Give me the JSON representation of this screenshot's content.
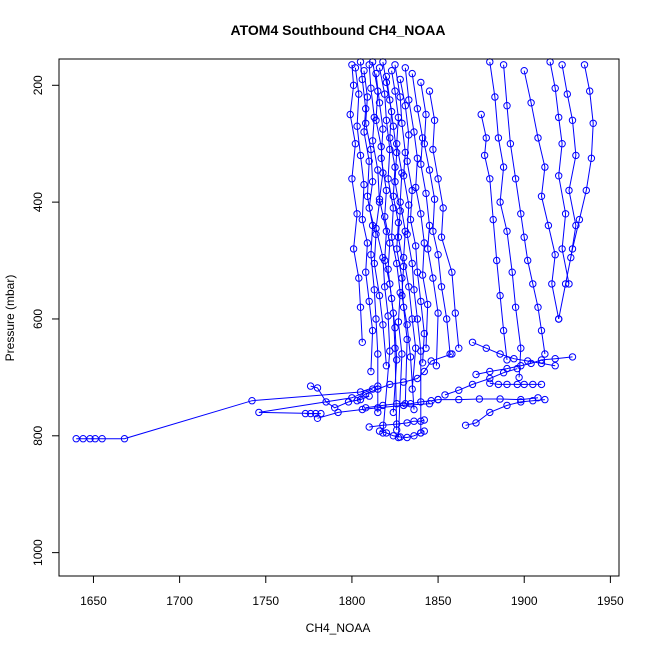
{
  "chart_data": {
    "type": "line",
    "title": "ATOM4 Southbound CH4_NOAA",
    "xlabel": "CH4_NOAA",
    "ylabel": "Pressure (mbar)",
    "xlim": [
      1630,
      1955
    ],
    "ylim": [
      1040,
      155
    ],
    "y_reversed": true,
    "xticks": [
      1650,
      1700,
      1750,
      1800,
      1850,
      1900,
      1950
    ],
    "yticks": [
      200,
      400,
      600,
      800,
      1000
    ],
    "color": "#0000ff",
    "marker": "open-circle",
    "grid": false,
    "legend": "none",
    "series": [
      {
        "x": [
          1640,
          1644,
          1648,
          1651,
          1655,
          1668,
          1742,
          1805,
          1815
        ],
        "y": [
          805,
          805,
          805,
          805,
          805,
          805,
          740,
          725,
          715
        ]
      },
      {
        "x": [
          1773,
          1776,
          1779,
          1782,
          1746,
          1800,
          1812
        ],
        "y": [
          762,
          762,
          762,
          762,
          760,
          735,
          720
        ]
      },
      {
        "x": [
          1776,
          1780,
          1785,
          1790,
          1798,
          1805,
          1810
        ],
        "y": [
          715,
          718,
          742,
          752,
          742,
          738,
          732
        ]
      },
      {
        "x": [
          1780,
          1792,
          1806,
          1815,
          1830,
          1845
        ],
        "y": [
          770,
          760,
          755,
          752,
          748,
          745
        ]
      },
      {
        "x": [
          1800,
          1801,
          1799,
          1802,
          1800,
          1803,
          1801,
          1804,
          1805,
          1806
        ],
        "y": [
          165,
          200,
          250,
          300,
          360,
          420,
          480,
          530,
          580,
          640
        ]
      },
      {
        "x": [
          1802,
          1804,
          1803,
          1805,
          1807,
          1806,
          1809,
          1808,
          1810,
          1812,
          1811
        ],
        "y": [
          170,
          215,
          270,
          320,
          370,
          430,
          470,
          520,
          570,
          620,
          690
        ]
      },
      {
        "x": [
          1805,
          1806,
          1808,
          1807,
          1810,
          1809,
          1812,
          1811,
          1813,
          1814,
          1815,
          1815
        ],
        "y": [
          160,
          190,
          240,
          280,
          330,
          390,
          440,
          490,
          550,
          600,
          660,
          760
        ]
      },
      {
        "x": [
          1807,
          1809,
          1808,
          1811,
          1812,
          1810,
          1814,
          1813,
          1816,
          1818,
          1820
        ],
        "y": [
          175,
          220,
          265,
          310,
          365,
          410,
          455,
          505,
          560,
          610,
          680
        ]
      },
      {
        "x": [
          1810,
          1811,
          1813,
          1812,
          1815,
          1816,
          1814,
          1818,
          1819,
          1821,
          1822,
          1818
        ],
        "y": [
          165,
          205,
          255,
          295,
          345,
          400,
          445,
          495,
          545,
          595,
          655,
          795
        ]
      },
      {
        "x": [
          1812,
          1815,
          1814,
          1817,
          1818,
          1816,
          1820,
          1819,
          1822,
          1824,
          1825,
          1826
        ],
        "y": [
          160,
          210,
          260,
          305,
          350,
          395,
          450,
          500,
          540,
          590,
          650,
          790
        ]
      },
      {
        "x": [
          1814,
          1816,
          1818,
          1817,
          1820,
          1819,
          1822,
          1821,
          1823,
          1825,
          1826,
          1824
        ],
        "y": [
          180,
          230,
          275,
          325,
          380,
          425,
          470,
          515,
          565,
          615,
          670,
          760
        ]
      },
      {
        "x": [
          1816,
          1819,
          1820,
          1822,
          1821,
          1824,
          1823,
          1826,
          1828,
          1827,
          1829,
          1827
        ],
        "y": [
          170,
          215,
          260,
          310,
          360,
          410,
          460,
          505,
          555,
          605,
          660,
          803
        ]
      },
      {
        "x": [
          1818,
          1820,
          1823,
          1822,
          1825,
          1824,
          1827,
          1826,
          1829,
          1830,
          1832,
          1831
        ],
        "y": [
          160,
          195,
          245,
          290,
          340,
          390,
          435,
          480,
          530,
          580,
          635,
          745
        ]
      },
      {
        "x": [
          1820,
          1822,
          1824,
          1826,
          1825,
          1828,
          1827,
          1830,
          1829,
          1832,
          1834,
          1836
        ],
        "y": [
          185,
          225,
          270,
          315,
          365,
          415,
          460,
          510,
          560,
          610,
          665,
          755
        ]
      },
      {
        "x": [
          1823,
          1825,
          1827,
          1826,
          1829,
          1828,
          1831,
          1830,
          1833,
          1835,
          1837,
          1835
        ],
        "y": [
          175,
          210,
          255,
          300,
          350,
          400,
          450,
          495,
          545,
          600,
          650,
          720
        ]
      },
      {
        "x": [
          1825,
          1828,
          1829,
          1831,
          1830,
          1833,
          1832,
          1835,
          1836,
          1838,
          1840,
          1840
        ],
        "y": [
          165,
          220,
          265,
          315,
          355,
          405,
          455,
          505,
          550,
          600,
          655,
          795
        ]
      },
      {
        "x": [
          1828,
          1831,
          1833,
          1832,
          1835,
          1834,
          1837,
          1838,
          1840,
          1842,
          1841
        ],
        "y": [
          190,
          235,
          285,
          330,
          380,
          430,
          475,
          520,
          570,
          625,
          675
        ]
      },
      {
        "x": [
          1831,
          1833,
          1836,
          1838,
          1837,
          1840,
          1842,
          1841,
          1844,
          1843
        ],
        "y": [
          170,
          225,
          280,
          325,
          375,
          420,
          470,
          525,
          575,
          650
        ]
      },
      {
        "x": [
          1835,
          1838,
          1841,
          1840,
          1843,
          1845,
          1844,
          1847,
          1850,
          1849
        ],
        "y": [
          180,
          240,
          290,
          335,
          385,
          440,
          480,
          530,
          590,
          680
        ]
      },
      {
        "x": [
          1840,
          1843,
          1842,
          1845,
          1848,
          1847,
          1850,
          1852,
          1855,
          1857
        ],
        "y": [
          195,
          250,
          300,
          345,
          395,
          450,
          490,
          545,
          600,
          660
        ]
      },
      {
        "x": [
          1845,
          1848,
          1847,
          1850,
          1853,
          1852,
          1858,
          1860,
          1862
        ],
        "y": [
          210,
          260,
          310,
          360,
          410,
          460,
          520,
          590,
          650
        ]
      },
      {
        "x": [
          1803,
          1808,
          1815,
          1822,
          1830,
          1838,
          1842,
          1846,
          1858
        ],
        "y": [
          740,
          728,
          720,
          712,
          708,
          702,
          690,
          672,
          660
        ]
      },
      {
        "x": [
          1808,
          1818,
          1826,
          1834,
          1840,
          1846,
          1850
        ],
        "y": [
          752,
          748,
          745,
          745,
          742,
          740,
          738
        ]
      },
      {
        "x": [
          1810,
          1818,
          1826,
          1832,
          1836,
          1840,
          1842
        ],
        "y": [
          785,
          782,
          780,
          778,
          775,
          775,
          773
        ]
      },
      {
        "x": [
          1816,
          1820,
          1824,
          1828,
          1832,
          1836,
          1840,
          1842
        ],
        "y": [
          792,
          795,
          800,
          802,
          803,
          800,
          795,
          792
        ]
      },
      {
        "x": [
          1850,
          1862,
          1874,
          1886,
          1898,
          1908
        ],
        "y": [
          738,
          738,
          737,
          737,
          738,
          735
        ]
      },
      {
        "x": [
          1866,
          1872,
          1880,
          1890,
          1898,
          1905,
          1912
        ],
        "y": [
          782,
          778,
          760,
          748,
          742,
          740,
          738
        ]
      },
      {
        "x": [
          1854,
          1862,
          1870,
          1880,
          1888,
          1896
        ],
        "y": [
          730,
          722,
          712,
          702,
          692,
          685
        ]
      },
      {
        "x": [
          1880,
          1883,
          1885,
          1888,
          1886,
          1890,
          1893,
          1895,
          1898,
          1897
        ],
        "y": [
          160,
          220,
          290,
          340,
          400,
          450,
          520,
          580,
          650,
          700
        ]
      },
      {
        "x": [
          1875,
          1878,
          1877,
          1880,
          1882,
          1884,
          1886,
          1888,
          1890
        ],
        "y": [
          250,
          290,
          320,
          360,
          430,
          500,
          560,
          620,
          670
        ]
      },
      {
        "x": [
          1888,
          1890,
          1892,
          1895,
          1898,
          1900,
          1902,
          1905,
          1908,
          1910,
          1912
        ],
        "y": [
          165,
          235,
          300,
          360,
          420,
          460,
          500,
          540,
          580,
          620,
          660
        ]
      },
      {
        "x": [
          1900,
          1904,
          1908,
          1912,
          1910,
          1914,
          1918,
          1916,
          1920
        ],
        "y": [
          175,
          230,
          290,
          340,
          390,
          440,
          490,
          540,
          600
        ]
      },
      {
        "x": [
          1915,
          1918,
          1920,
          1922,
          1920,
          1924,
          1922,
          1926
        ],
        "y": [
          160,
          205,
          255,
          300,
          355,
          420,
          480,
          540
        ]
      },
      {
        "x": [
          1922,
          1925,
          1928,
          1930,
          1926,
          1930,
          1927
        ],
        "y": [
          165,
          215,
          260,
          320,
          380,
          440,
          495
        ]
      },
      {
        "x": [
          1935,
          1938,
          1940,
          1939,
          1936,
          1932,
          1928,
          1924,
          1920
        ],
        "y": [
          165,
          210,
          265,
          325,
          380,
          430,
          480,
          540,
          600
        ]
      },
      {
        "x": [
          1872,
          1880,
          1890,
          1898,
          1904,
          1910,
          1918,
          1928
        ],
        "y": [
          695,
          690,
          685,
          680,
          676,
          670,
          668,
          665
        ]
      },
      {
        "x": [
          1880,
          1885,
          1890,
          1896,
          1900,
          1905,
          1910
        ],
        "y": [
          710,
          712,
          712,
          712,
          712,
          712,
          712
        ]
      },
      {
        "x": [
          1870,
          1878,
          1886,
          1894,
          1902,
          1910,
          1918
        ],
        "y": [
          640,
          650,
          660,
          668,
          672,
          676,
          680
        ]
      }
    ]
  }
}
